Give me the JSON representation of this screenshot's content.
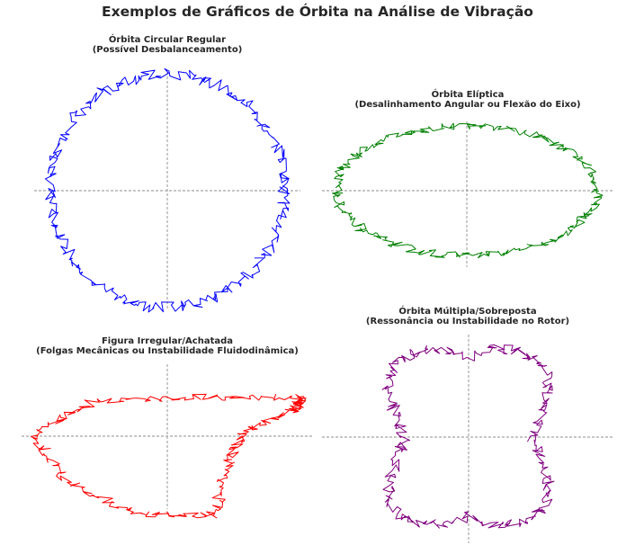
{
  "title": "Exemplos de Gráficos de Órbita na Análise de Vibração",
  "chart_data": [
    {
      "type": "line",
      "title_line1": "Órbita Circular Regular",
      "title_line2": "(Possível Desbalanceamento)",
      "shape": "circle",
      "color": "#0000ff",
      "noise": 0.05,
      "grid": false,
      "crosshair_lines": true
    },
    {
      "type": "line",
      "title_line1": "Órbita Elíptica",
      "title_line2": "(Desalinhamento Angular ou Flexão do Eixo)",
      "shape": "ellipse",
      "color": "#008000",
      "noise": 0.05,
      "grid": false,
      "crosshair_lines": true
    },
    {
      "type": "line",
      "title_line1": "Figura Irregular/Achatada",
      "title_line2": "(Folgas Mecânicas ou Instabilidade Fluidodinâmica)",
      "shape": "irregular-flattened",
      "color": "#ff0000",
      "noise": 0.05,
      "grid": false,
      "crosshair_lines": true
    },
    {
      "type": "line",
      "title_line1": "Órbita Múltipla/Sobreposta",
      "title_line2": "(Ressonância ou Instabilidade no Rotor)",
      "shape": "heart-lobed",
      "color": "#800080",
      "noise": 0.05,
      "grid": false,
      "crosshair_lines": true
    }
  ]
}
